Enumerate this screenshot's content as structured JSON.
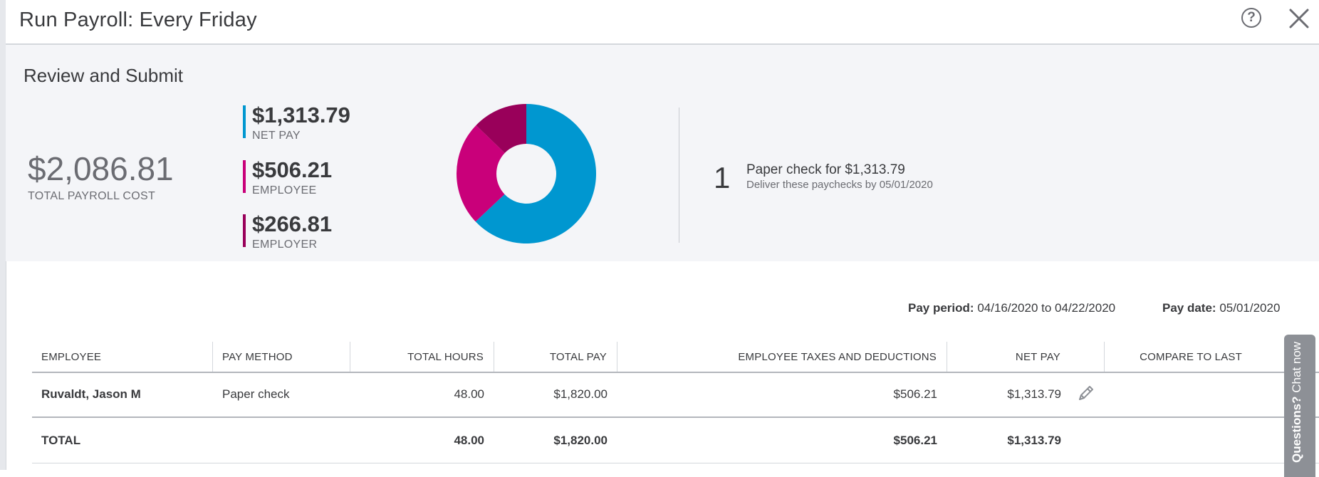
{
  "header": {
    "title": "Run Payroll: Every Friday",
    "help_icon": "help-circle-icon",
    "close_icon": "close-icon"
  },
  "summary": {
    "section_title": "Review and Submit",
    "total_cost": "$2,086.81",
    "total_cost_label": "TOTAL PAYROLL COST",
    "breakdown": [
      {
        "amount": "$1,313.79",
        "label": "NET PAY",
        "color": "#0097d0",
        "value": 1313.79
      },
      {
        "amount": "$506.21",
        "label": "EMPLOYEE",
        "color": "#c9007a",
        "value": 506.21
      },
      {
        "amount": "$266.81",
        "label": "EMPLOYER",
        "color": "#99005a",
        "value": 266.81
      }
    ],
    "paychecks": {
      "count": "1",
      "text": "Paper check for $1,313.79",
      "sub": "Deliver these paychecks by 05/01/2020"
    }
  },
  "period": {
    "pay_period_label": "Pay period:",
    "pay_period_value": "04/16/2020 to 04/22/2020",
    "pay_date_label": "Pay date:",
    "pay_date_value": "05/01/2020"
  },
  "table": {
    "columns": [
      "EMPLOYEE",
      "PAY METHOD",
      "TOTAL HOURS",
      "TOTAL PAY",
      "EMPLOYEE TAXES AND DEDUCTIONS",
      "NET PAY",
      "COMPARE TO LAST"
    ],
    "rows": [
      {
        "employee": "Ruvaldt, Jason M",
        "pay_method": "Paper check",
        "total_hours": "48.00",
        "total_pay": "$1,820.00",
        "taxes": "$506.21",
        "net_pay": "$1,313.79"
      }
    ],
    "total": {
      "label": "TOTAL",
      "total_hours": "48.00",
      "total_pay": "$1,820.00",
      "taxes": "$506.21",
      "net_pay": "$1,313.79"
    },
    "edit_icon": "pencil-icon"
  },
  "chat": {
    "bold": "Questions?",
    "text": " Chat now"
  }
}
